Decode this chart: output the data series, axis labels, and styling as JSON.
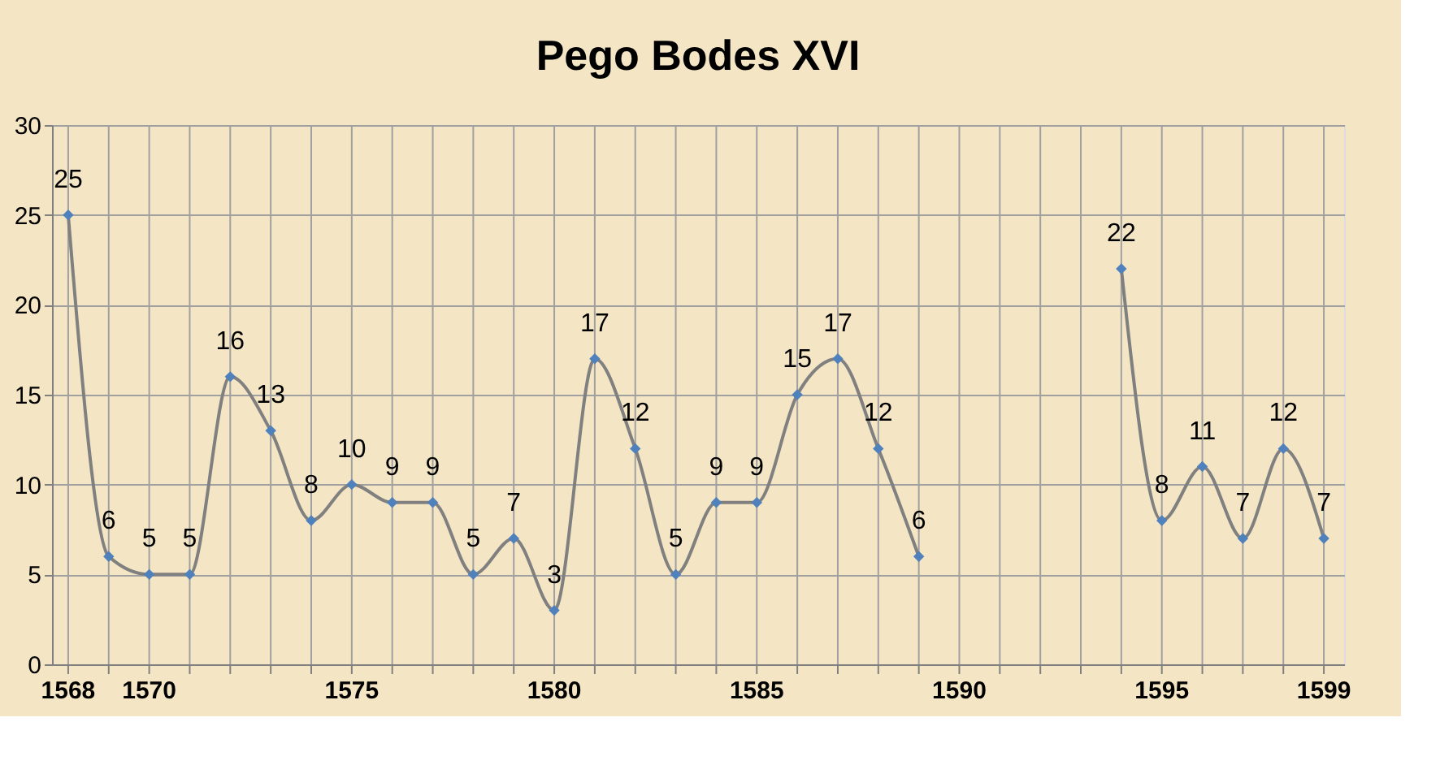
{
  "chart_data": {
    "type": "line",
    "title": "Pego Bodes XVI",
    "x": [
      1568,
      1569,
      1570,
      1571,
      1572,
      1573,
      1574,
      1575,
      1576,
      1577,
      1578,
      1579,
      1580,
      1581,
      1582,
      1583,
      1584,
      1585,
      1586,
      1587,
      1588,
      1589,
      1590,
      1591,
      1592,
      1593,
      1594,
      1595,
      1596,
      1597,
      1598,
      1599
    ],
    "series": [
      {
        "color": "#4f81bd",
        "values": [
          25,
          6,
          5,
          5,
          16,
          13,
          8,
          10,
          9,
          9,
          5,
          7,
          3,
          17,
          12,
          5,
          9,
          9,
          15,
          17,
          12,
          6,
          null,
          null,
          null,
          null,
          22,
          8,
          11,
          7,
          12,
          7
        ]
      }
    ],
    "xlim": [
      1567.6,
      1599.5
    ],
    "xticks": [
      1568,
      {
        "value": 1569,
        "label": null
      },
      1570,
      {
        "value": 1571,
        "label": null
      },
      {
        "value": 1572,
        "label": null
      },
      {
        "value": 1573,
        "label": null
      },
      {
        "value": 1574,
        "label": null
      },
      1575,
      {
        "value": 1576,
        "label": null
      },
      {
        "value": 1577,
        "label": null
      },
      {
        "value": 1578,
        "label": null
      },
      {
        "value": 1579,
        "label": null
      },
      1580,
      {
        "value": 1581,
        "label": null
      },
      {
        "value": 1582,
        "label": null
      },
      {
        "value": 1583,
        "label": null
      },
      {
        "value": 1584,
        "label": null
      },
      1585,
      {
        "value": 1586,
        "label": null
      },
      {
        "value": 1587,
        "label": null
      },
      {
        "value": 1588,
        "label": null
      },
      {
        "value": 1589,
        "label": null
      },
      1590,
      {
        "value": 1591,
        "label": null
      },
      {
        "value": 1592,
        "label": null
      },
      {
        "value": 1593,
        "label": null
      },
      {
        "value": 1594,
        "label": null
      },
      1595,
      {
        "value": 1596,
        "label": null
      },
      {
        "value": 1597,
        "label": null
      },
      {
        "value": 1598,
        "label": null
      },
      1599
    ],
    "ylim": [
      0,
      30
    ],
    "yticks": [
      0,
      5,
      10,
      15,
      20,
      25,
      30
    ],
    "grid": true,
    "marker": "diamond",
    "data_labels": true
  }
}
